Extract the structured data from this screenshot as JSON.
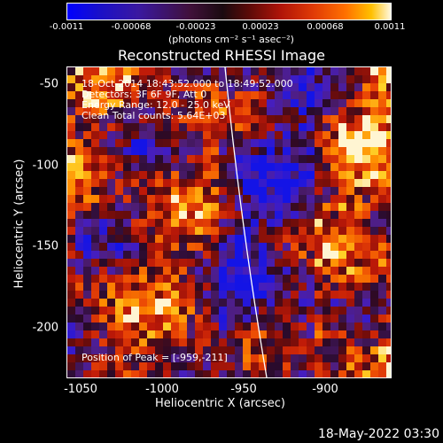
{
  "colorbar": {
    "ticks": [
      "-0.0011",
      "-0.00068",
      "-0.00023",
      "0.00023",
      "0.00068",
      "0.0011"
    ],
    "units": "(photons cm⁻² s⁻¹ asec⁻²)"
  },
  "title": "Reconstructed RHESSI Image",
  "annotations": {
    "time": "18-Oct-2014 18:43:52.000 to 18:49:52.000",
    "detectors": "Detectors: 3F 6F 9F, Att 0",
    "energy": "Energy Range: 12.0 - 25.0 keV",
    "clean": "Clean     Total counts: 5.64E+03",
    "peak": "Position of Peak = [-959,-211]"
  },
  "axes": {
    "xlabel": "Heliocentric X (arcsec)",
    "ylabel": "Heliocentric Y (arcsec)",
    "xticks": [
      "-1050",
      "-1000",
      "-950",
      "-900"
    ],
    "yticks": [
      "-50",
      "-100",
      "-150",
      "-200"
    ]
  },
  "datestamp": "18-May-2022 03:30"
}
